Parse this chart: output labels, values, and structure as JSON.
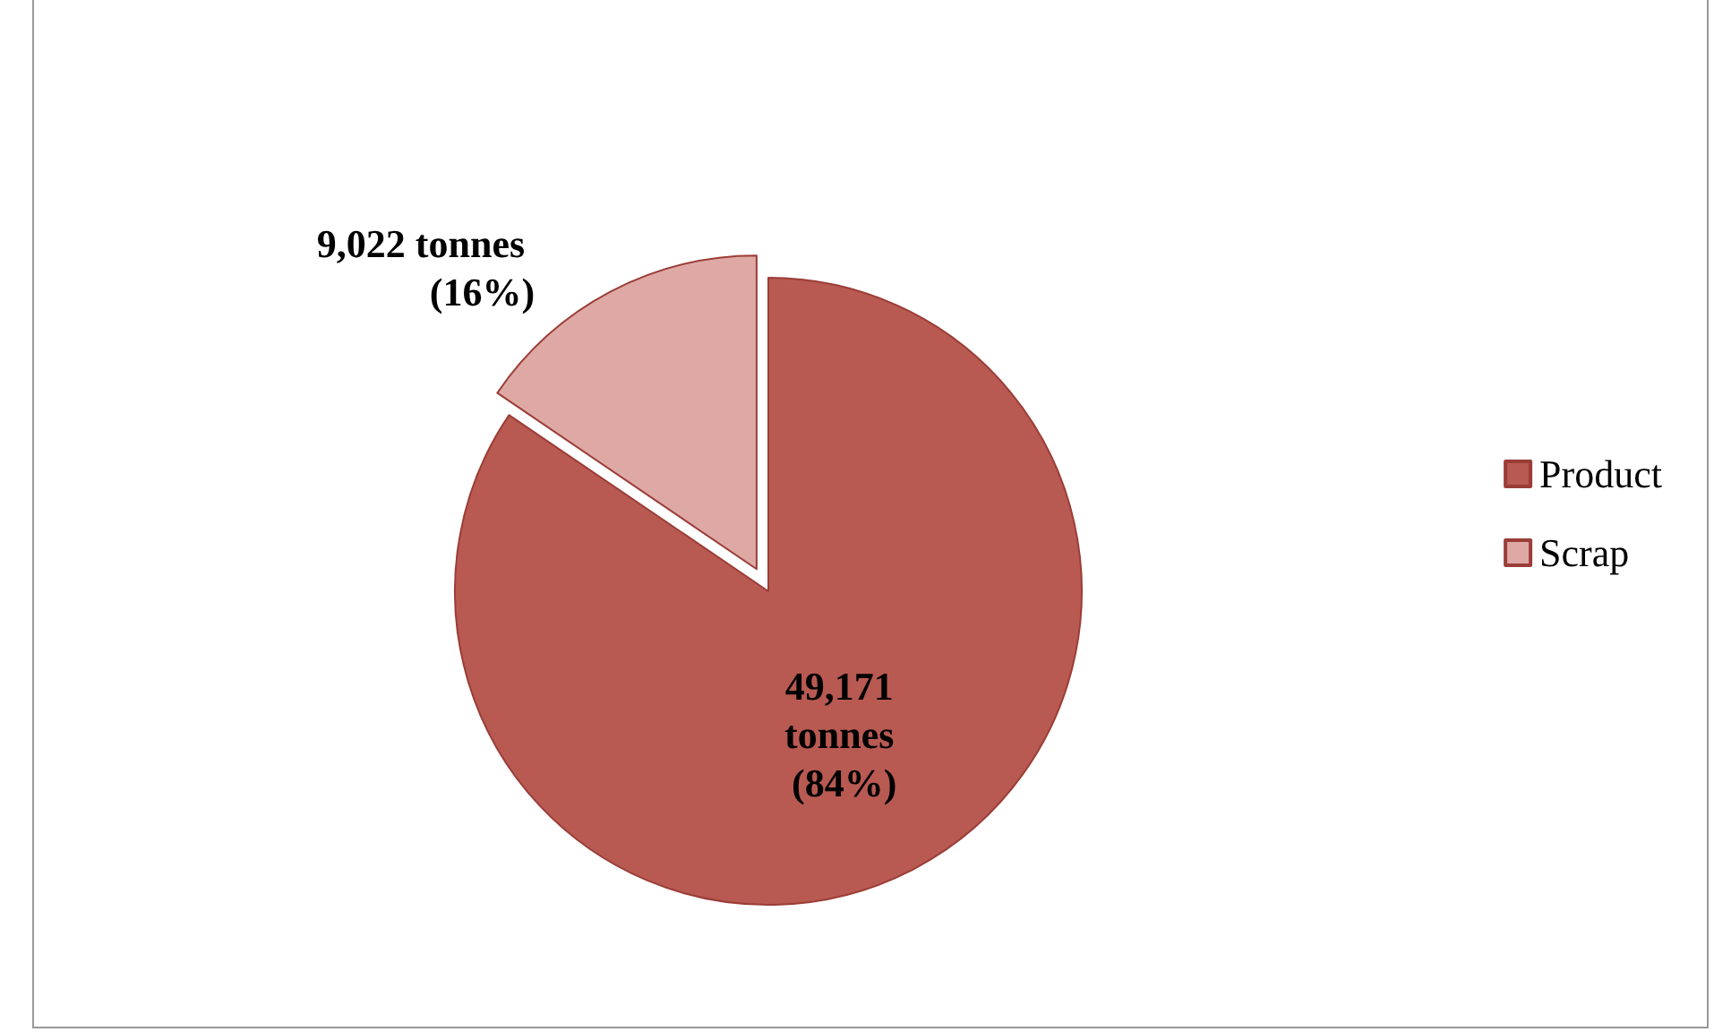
{
  "chart_data": {
    "type": "pie",
    "categories": [
      "Product",
      "Scrap"
    ],
    "values": [
      49171,
      9022
    ],
    "colors": [
      "#b85a52",
      "#dea8a5"
    ],
    "value_labels": [
      "49,171 tonnes (84%)",
      "9,022 tonnes (16%)"
    ],
    "legend": "right"
  }
}
